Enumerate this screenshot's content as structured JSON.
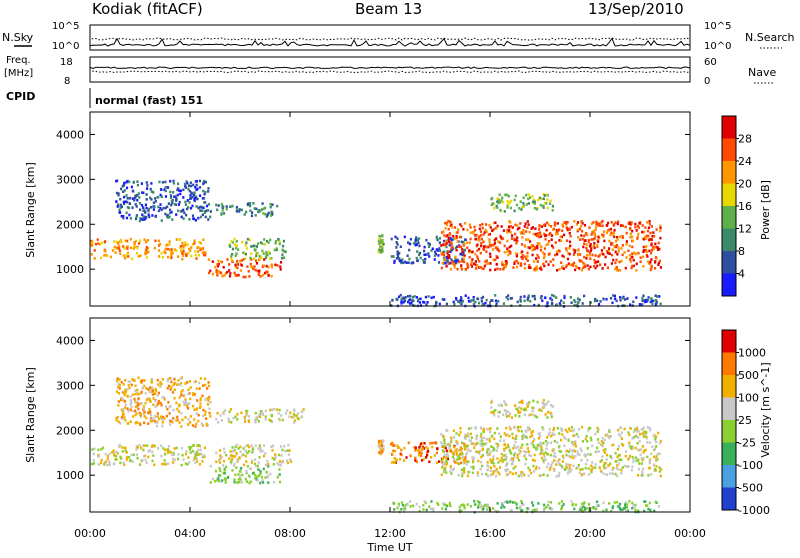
{
  "header": {
    "station": "Kodiak (fitACF)",
    "beam": "Beam 13",
    "date": "13/Sep/2010"
  },
  "top_panel": {
    "left_label": "N.Sky",
    "right_label": "N.Search",
    "left_ticks": [
      "10^5",
      "10^0"
    ],
    "right_ticks": [
      "10^5",
      "10^0"
    ]
  },
  "freq_panel": {
    "left_label_1": "Freq.",
    "left_label_2": "[MHz]",
    "right_label": "Nave",
    "left_ticks": [
      "18",
      "8"
    ],
    "right_ticks": [
      "60",
      "0"
    ]
  },
  "cpid_panel": {
    "label": "CPID",
    "mode": "normal (fast) 151"
  },
  "chart_data": [
    {
      "type": "heatmap",
      "title": "",
      "xlabel": "Time UT",
      "ylabel": "Slant Range [km]",
      "x_ticks": [
        "00:00",
        "04:00",
        "08:00",
        "12:00",
        "16:00",
        "20:00",
        "00:00"
      ],
      "x_range_hours": [
        0,
        24
      ],
      "y_ticks": [
        1000,
        2000,
        3000,
        4000
      ],
      "ylim": [
        180,
        4500
      ],
      "colorbar": {
        "label": "Power [dB]",
        "ticks": [
          "4",
          "8",
          "12",
          "16",
          "20",
          "24",
          "28"
        ],
        "colors": [
          "#1a1aff",
          "#2e4fa0",
          "#3c8a6a",
          "#5fb04a",
          "#e9d700",
          "#ff9600",
          "#ff4a00",
          "#e00000"
        ]
      },
      "regions": [
        {
          "t0": 0.0,
          "t1": 4.6,
          "r0": 1250,
          "r1": 1700,
          "level": 5
        },
        {
          "t0": 1.0,
          "t1": 4.8,
          "r0": 2100,
          "r1": 3000,
          "level": 1
        },
        {
          "t0": 4.7,
          "t1": 7.6,
          "r0": 850,
          "r1": 1250,
          "level": 6
        },
        {
          "t0": 5.5,
          "t1": 7.8,
          "r0": 1250,
          "r1": 1700,
          "level": 3
        },
        {
          "t0": 5.0,
          "t1": 7.5,
          "r0": 2200,
          "r1": 2500,
          "level": 2
        },
        {
          "t0": 11.5,
          "t1": 11.7,
          "r0": 1400,
          "r1": 1800,
          "level": 3
        },
        {
          "t0": 12.0,
          "t1": 15.0,
          "r0": 1150,
          "r1": 1750,
          "level": 1
        },
        {
          "t0": 14.0,
          "t1": 22.8,
          "r0": 1000,
          "r1": 2100,
          "level": 6
        },
        {
          "t0": 16.0,
          "t1": 18.5,
          "r0": 2300,
          "r1": 2700,
          "level": 3
        },
        {
          "t0": 12.0,
          "t1": 22.8,
          "r0": 200,
          "r1": 450,
          "level": 1
        }
      ]
    },
    {
      "type": "heatmap",
      "title": "",
      "xlabel": "Time UT",
      "ylabel": "Slant Range [km]",
      "x_ticks": [
        "00:00",
        "04:00",
        "08:00",
        "12:00",
        "16:00",
        "20:00",
        "00:00"
      ],
      "x_range_hours": [
        0,
        24
      ],
      "y_ticks": [
        1000,
        2000,
        3000,
        4000
      ],
      "ylim": [
        180,
        4500
      ],
      "colorbar": {
        "label": "Velocity [m s^-1]",
        "ticks": [
          "1000",
          "500",
          "100",
          "25",
          "-25",
          "-100",
          "-500",
          "-1000"
        ],
        "colors": [
          "#2040d0",
          "#4aa0e0",
          "#3ab05a",
          "#8ad030",
          "#c8c8c8",
          "#f0b000",
          "#ff7800",
          "#e00000"
        ]
      },
      "regions": [
        {
          "t0": 0.0,
          "t1": 4.6,
          "r0": 1250,
          "r1": 1700,
          "level": 4
        },
        {
          "t0": 1.0,
          "t1": 4.8,
          "r0": 2100,
          "r1": 3200,
          "level": 5
        },
        {
          "t0": 4.7,
          "t1": 7.6,
          "r0": 850,
          "r1": 1250,
          "level": 3
        },
        {
          "t0": 5.0,
          "t1": 8.0,
          "r0": 1250,
          "r1": 1700,
          "level": 4
        },
        {
          "t0": 5.0,
          "t1": 8.5,
          "r0": 2200,
          "r1": 2500,
          "level": 4
        },
        {
          "t0": 11.5,
          "t1": 11.7,
          "r0": 1500,
          "r1": 1800,
          "level": 5
        },
        {
          "t0": 12.0,
          "t1": 15.0,
          "r0": 1300,
          "r1": 1750,
          "level": 6
        },
        {
          "t0": 14.0,
          "t1": 22.8,
          "r0": 1000,
          "r1": 2100,
          "level": 4
        },
        {
          "t0": 16.0,
          "t1": 18.5,
          "r0": 2300,
          "r1": 2700,
          "level": 4
        },
        {
          "t0": 12.0,
          "t1": 22.8,
          "r0": 200,
          "r1": 450,
          "level": 3
        }
      ]
    }
  ]
}
